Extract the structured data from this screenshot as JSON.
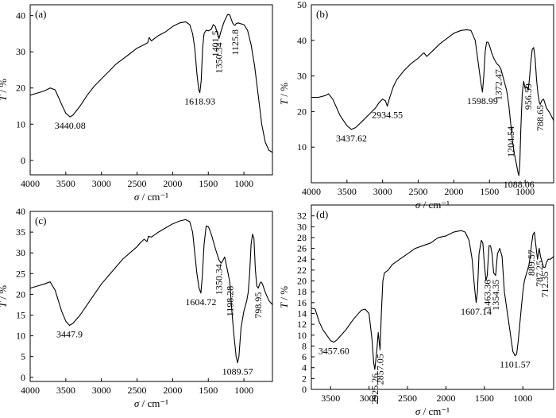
{
  "chart_data": [
    {
      "type": "line",
      "panel_label": "(a)",
      "xlabel_sym": "σ",
      "xlabel_unit": " / cm⁻¹",
      "ylabel_sym": "T",
      "ylabel_unit": " / %",
      "xlim": [
        4000,
        600
      ],
      "ylim": [
        -4,
        43
      ],
      "xticks": [
        4000,
        3500,
        3000,
        2500,
        2000,
        1500,
        1000
      ],
      "yticks": [
        0,
        10,
        20,
        30,
        40
      ],
      "grid": false,
      "series": [
        {
          "x": [
            4000,
            3900,
            3800,
            3720,
            3650,
            3560,
            3500,
            3440,
            3400,
            3300,
            3200,
            3100,
            3000,
            2900,
            2800,
            2700,
            2600,
            2500,
            2400,
            2350,
            2330,
            2300,
            2200,
            2100,
            2000,
            1900,
            1820,
            1760,
            1720,
            1690,
            1660,
            1635,
            1619,
            1600,
            1580,
            1560,
            1530,
            1500,
            1460,
            1430,
            1401.5,
            1380,
            1350.34,
            1320,
            1280,
            1230,
            1200,
            1160,
            1140,
            1125.8,
            1110,
            1080,
            1050,
            1000,
            950,
            900,
            850,
            800,
            750,
            700,
            650,
            600
          ],
          "y": [
            18,
            18.6,
            19.2,
            20,
            19.5,
            15.5,
            13,
            12,
            12.5,
            15,
            18,
            20.5,
            22.5,
            24.5,
            26.5,
            28,
            29.5,
            31,
            32,
            32.5,
            34,
            33,
            34.5,
            35.5,
            37,
            38,
            38.3,
            37.5,
            35,
            31,
            24,
            19.5,
            18.7,
            22,
            31,
            35,
            36,
            35.8,
            36.2,
            37.5,
            37,
            35.5,
            33.7,
            35.8,
            38.2,
            40.3,
            40.2,
            38,
            37.5,
            37.3,
            37.8,
            38,
            37.8,
            37.5,
            36,
            32,
            26,
            18,
            10,
            5,
            2.8,
            2.2
          ]
        }
      ],
      "annotations": [
        {
          "text": "3440.08",
          "x": 3440,
          "y": 12,
          "pos": "below"
        },
        {
          "text": "1618.93",
          "x": 1619,
          "y": 18.7,
          "pos": "below"
        },
        {
          "text": "1401.5",
          "x": 1401.5,
          "y": 37,
          "pos": "vert-below"
        },
        {
          "text": "1350.34",
          "x": 1350.34,
          "y": 33.7,
          "pos": "vert-below"
        },
        {
          "text": "1125.8",
          "x": 1125.8,
          "y": 37.3,
          "pos": "vert-below"
        }
      ]
    },
    {
      "type": "line",
      "panel_label": "(b)",
      "xlabel_sym": "σ",
      "xlabel_unit": " / cm⁻¹",
      "ylabel_sym": "T",
      "ylabel_unit": " / %",
      "xlim": [
        4000,
        600
      ],
      "ylim": [
        0,
        50
      ],
      "xticks": [
        4000,
        3500,
        3000,
        2500,
        2000,
        1500,
        1000
      ],
      "yticks": [
        10,
        20,
        30,
        40,
        50
      ],
      "grid": false,
      "series": [
        {
          "x": [
            4000,
            3900,
            3800,
            3760,
            3700,
            3600,
            3500,
            3437.62,
            3380,
            3300,
            3200,
            3100,
            3050,
            3000,
            2960,
            2934.55,
            2900,
            2850,
            2800,
            2700,
            2600,
            2500,
            2450,
            2420,
            2380,
            2300,
            2200,
            2100,
            2000,
            1900,
            1820,
            1760,
            1700,
            1660,
            1620,
            1598.99,
            1580,
            1560,
            1540,
            1520,
            1500,
            1470,
            1440,
            1400,
            1372.47,
            1340,
            1300,
            1260,
            1230,
            1204.54,
            1180,
            1150,
            1120,
            1100,
            1088.06,
            1075,
            1060,
            1040,
            1020,
            1000,
            980,
            956.59,
            940,
            920,
            900,
            880,
            860,
            840,
            820,
            800,
            788.65,
            770,
            740,
            700,
            650,
            600
          ],
          "y": [
            24,
            24,
            24.5,
            25,
            23.5,
            19,
            16,
            15,
            15.5,
            17,
            19,
            21,
            22.5,
            23.5,
            23,
            21.5,
            24,
            27,
            29,
            31.5,
            33.5,
            35,
            36,
            36.5,
            35.5,
            37,
            39,
            40.5,
            42,
            42.8,
            43,
            42.8,
            40,
            34,
            28,
            25.5,
            30,
            37,
            39.5,
            39.5,
            38.5,
            36.5,
            35,
            33.5,
            33,
            32,
            29,
            26,
            22,
            17,
            12,
            8,
            5,
            3,
            2,
            5,
            15,
            25,
            28.5,
            26.5,
            27,
            26,
            29,
            34,
            37.5,
            38,
            35,
            29,
            25,
            22.5,
            22,
            23,
            23.5,
            21,
            19.5,
            17.5
          ]
        }
      ],
      "annotations": [
        {
          "text": "3437.62",
          "x": 3437.62,
          "y": 15,
          "pos": "below"
        },
        {
          "text": "2934.55",
          "x": 2934.55,
          "y": 21.5,
          "pos": "below"
        },
        {
          "text": "1598.99",
          "x": 1598.99,
          "y": 25.5,
          "pos": "below"
        },
        {
          "text": "1372.47",
          "x": 1372.47,
          "y": 33,
          "pos": "vert-below"
        },
        {
          "text": "1204.54",
          "x": 1204.54,
          "y": 17,
          "pos": "vert-below"
        },
        {
          "text": "1088.06",
          "x": 1088.06,
          "y": 2,
          "pos": "below"
        },
        {
          "text": "956.59",
          "x": 956.59,
          "y": 29,
          "pos": "vert-below"
        },
        {
          "text": "788.65",
          "x": 788.65,
          "y": 23,
          "pos": "vert-below"
        }
      ]
    },
    {
      "type": "line",
      "panel_label": "(c)",
      "xlabel_sym": "σ",
      "xlabel_unit": " / cm⁻¹",
      "ylabel_sym": "T",
      "ylabel_unit": " / %",
      "xlim": [
        4000,
        600
      ],
      "ylim": [
        -1,
        40
      ],
      "xticks": [
        4000,
        3500,
        3000,
        2500,
        2000,
        1500,
        1000
      ],
      "yticks": [
        0,
        5,
        10,
        15,
        20,
        25,
        30,
        35,
        40
      ],
      "grid": false,
      "series": [
        {
          "x": [
            4000,
            3900,
            3800,
            3720,
            3650,
            3560,
            3500,
            3447.9,
            3400,
            3300,
            3200,
            3100,
            3000,
            2900,
            2800,
            2700,
            2600,
            2500,
            2450,
            2400,
            2360,
            2340,
            2300,
            2200,
            2100,
            2000,
            1900,
            1820,
            1760,
            1720,
            1690,
            1660,
            1630,
            1604.72,
            1585,
            1560,
            1530,
            1500,
            1480,
            1450,
            1400,
            1350.34,
            1320,
            1300,
            1270,
            1240,
            1198.28,
            1170,
            1140,
            1110,
            1089.57,
            1070,
            1040,
            1000,
            960,
            940,
            920,
            900,
            880,
            860,
            840,
            820,
            798.95,
            780,
            760,
            740,
            720,
            700,
            650,
            600
          ],
          "y": [
            21.5,
            22,
            22.5,
            23,
            21,
            16,
            13.5,
            12.5,
            13,
            15,
            17.5,
            20,
            22.5,
            24.5,
            26.5,
            28.5,
            30,
            31.5,
            32.5,
            33.3,
            32.7,
            34,
            33.8,
            35,
            36,
            37,
            37.7,
            38,
            37.5,
            35,
            30,
            25,
            21.5,
            20.3,
            24,
            32,
            36.5,
            36.3,
            35.5,
            34,
            31,
            28.3,
            27.5,
            28,
            29,
            26.5,
            23,
            16,
            10,
            5,
            3.5,
            5,
            12,
            16,
            18.5,
            20.5,
            25,
            32,
            34.5,
            33.5,
            26,
            22,
            21.5,
            22.5,
            23,
            22.5,
            21.5,
            20.5,
            18.5,
            17.5
          ]
        }
      ],
      "annotations": [
        {
          "text": "3447.9",
          "x": 3447.9,
          "y": 12.5,
          "pos": "below"
        },
        {
          "text": "1604.72",
          "x": 1604.72,
          "y": 20.3,
          "pos": "below"
        },
        {
          "text": "1350.34",
          "x": 1350.34,
          "y": 28.3,
          "pos": "vert-below"
        },
        {
          "text": "1198.28",
          "x": 1198.28,
          "y": 23,
          "pos": "vert-below"
        },
        {
          "text": "1089.57",
          "x": 1089.57,
          "y": 3.5,
          "pos": "below"
        },
        {
          "text": "798.95",
          "x": 798.95,
          "y": 21.5,
          "pos": "vert-below"
        }
      ]
    },
    {
      "type": "line",
      "panel_label": "(d)",
      "xlabel_sym": "σ",
      "xlabel_unit": " / cm⁻¹",
      "ylabel_sym": "T",
      "ylabel_unit": " / %",
      "xlim": [
        3750,
        600
      ],
      "ylim": [
        0,
        34
      ],
      "xticks": [
        3500,
        3000,
        2500,
        2000,
        1500,
        1000
      ],
      "yticks": [
        0,
        2,
        4,
        6,
        8,
        10,
        12,
        14,
        16,
        18,
        20,
        22,
        24,
        26,
        28,
        30,
        32
      ],
      "grid": false,
      "series": [
        {
          "x": [
            3750,
            3700,
            3650,
            3600,
            3550,
            3500,
            3457.6,
            3420,
            3350,
            3300,
            3250,
            3200,
            3150,
            3100,
            3050,
            3000,
            2960,
            2940,
            2925.26,
            2900,
            2880,
            2870,
            2857.05,
            2840,
            2820,
            2800,
            2750,
            2700,
            2600,
            2500,
            2400,
            2300,
            2200,
            2100,
            2000,
            1900,
            1800,
            1750,
            1700,
            1660,
            1630,
            1607.14,
            1590,
            1570,
            1540,
            1520,
            1500,
            1480,
            1463.36,
            1440,
            1420,
            1400,
            1380,
            1354.35,
            1330,
            1300,
            1270,
            1240,
            1200,
            1160,
            1130,
            1101.57,
            1080,
            1060,
            1040,
            1020,
            1000,
            980,
            960,
            940,
            920,
            900,
            889.57,
            870,
            850,
            830,
            810,
            787.25,
            770,
            750,
            730,
            712.35,
            690,
            670,
            640,
            600
          ],
          "y": [
            15,
            14.8,
            12.5,
            11,
            10,
            9,
            8.7,
            9.1,
            10.2,
            11,
            12,
            13,
            13.8,
            14.6,
            14.8,
            14,
            9,
            5,
            3.7,
            7,
            10.5,
            9,
            7.3,
            14,
            20,
            21.5,
            22,
            23,
            24,
            25,
            26,
            26.5,
            27,
            28,
            28.3,
            29,
            29.3,
            29,
            27.5,
            24,
            19,
            16,
            18,
            25,
            27.5,
            27,
            23,
            20,
            21,
            26.5,
            26.5,
            25,
            21.5,
            21,
            25,
            26,
            24.5,
            18,
            14,
            10,
            7,
            6.2,
            6.5,
            9,
            12,
            15,
            18,
            20,
            21,
            22,
            23,
            25,
            26.5,
            28.5,
            29,
            26.5,
            24,
            26,
            24.5,
            23.5,
            22.5,
            22.5,
            23.5,
            24,
            24,
            24.5
          ]
        }
      ],
      "annotations": [
        {
          "text": "3457.60",
          "x": 3457.6,
          "y": 8.7,
          "pos": "below"
        },
        {
          "text": "2925.26",
          "x": 2925.26,
          "y": 3.7,
          "pos": "vert-below"
        },
        {
          "text": "2857.05",
          "x": 2857.05,
          "y": 7.3,
          "pos": "vert-below"
        },
        {
          "text": "1607.14",
          "x": 1607.14,
          "y": 16,
          "pos": "below"
        },
        {
          "text": "1463.36",
          "x": 1463.36,
          "y": 21,
          "pos": "vert-below"
        },
        {
          "text": "1354.35",
          "x": 1354.35,
          "y": 21,
          "pos": "vert-below"
        },
        {
          "text": "1101.57",
          "x": 1101.57,
          "y": 6.2,
          "pos": "below"
        },
        {
          "text": "889.57",
          "x": 889.57,
          "y": 26.5,
          "pos": "vert-below"
        },
        {
          "text": "787.25",
          "x": 787.25,
          "y": 24.5,
          "pos": "vert-below"
        },
        {
          "text": "712.35",
          "x": 712.35,
          "y": 22.5,
          "pos": "vert-below"
        }
      ]
    }
  ]
}
